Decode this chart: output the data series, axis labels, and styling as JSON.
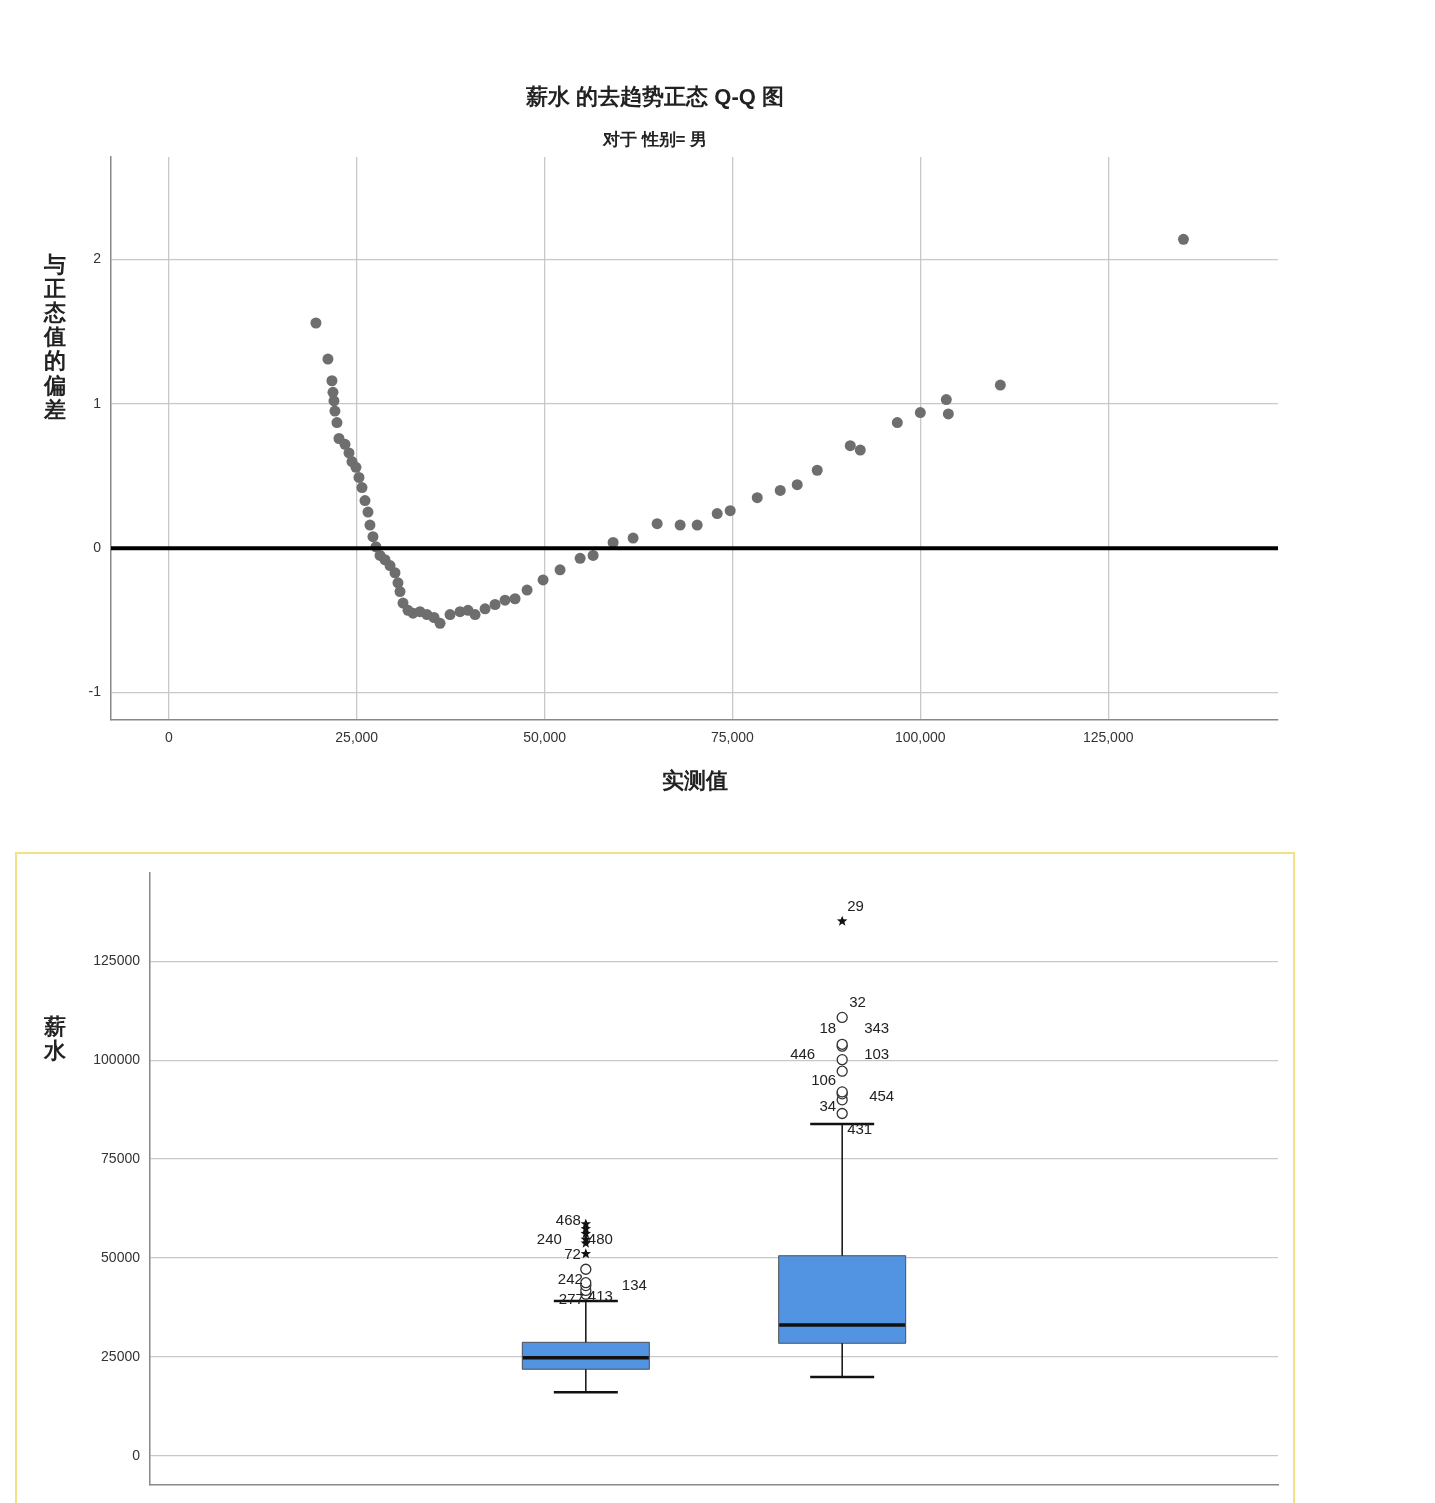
{
  "chart_data": [
    {
      "type": "scatter",
      "title": "薪水 的去趋势正态 Q-Q 图",
      "subtitle": "对于 性别= 男",
      "xlabel": "实测值",
      "ylabel": "与正态值的偏差",
      "color": "#6e6e6e",
      "marker": "circle",
      "grid": true,
      "x": [
        19570,
        21170,
        21700,
        21840,
        21970,
        22100,
        22370,
        22640,
        23440,
        23970,
        24370,
        24900,
        25300,
        25700,
        26100,
        26500,
        26760,
        27160,
        27560,
        28100,
        28760,
        29430,
        30090,
        30490,
        30760,
        31160,
        31820,
        32490,
        33420,
        34350,
        35290,
        36090,
        37420,
        38750,
        39810,
        40750,
        42080,
        43410,
        44740,
        46070,
        47670,
        49800,
        52060,
        54730,
        56460,
        59120,
        61780,
        64980,
        68040,
        70310,
        72970,
        74700,
        78300,
        81360,
        83620,
        86280,
        90680,
        92010,
        96940,
        100000,
        103460,
        103730,
        110650,
        135020
      ],
      "values": [
        1.56,
        1.31,
        1.16,
        1.08,
        1.02,
        0.95,
        0.87,
        0.76,
        0.72,
        0.66,
        0.6,
        0.56,
        0.49,
        0.42,
        0.33,
        0.25,
        0.16,
        0.08,
        0.01,
        -0.05,
        -0.08,
        -0.12,
        -0.17,
        -0.24,
        -0.3,
        -0.38,
        -0.43,
        -0.45,
        -0.44,
        -0.46,
        -0.48,
        -0.52,
        -0.46,
        -0.44,
        -0.43,
        -0.46,
        -0.42,
        -0.39,
        -0.36,
        -0.35,
        -0.29,
        -0.22,
        -0.15,
        -0.07,
        -0.05,
        0.04,
        0.07,
        0.17,
        0.16,
        0.16,
        0.24,
        0.26,
        0.35,
        0.4,
        0.44,
        0.54,
        0.71,
        0.68,
        0.87,
        0.94,
        1.03,
        0.93,
        1.13,
        2.14
      ],
      "xlim": [
        -7700,
        147600
      ],
      "ylim": [
        -1.19,
        2.71
      ],
      "xticks": [
        {
          "value": 0,
          "label": "0"
        },
        {
          "value": 25000,
          "label": "25,000"
        },
        {
          "value": 50000,
          "label": "50,000"
        },
        {
          "value": 75000,
          "label": "75,000"
        },
        {
          "value": 100000,
          "label": "100,000"
        },
        {
          "value": 125000,
          "label": "125,000"
        }
      ],
      "yticks": [
        -1,
        0,
        1,
        2
      ],
      "ref_lines": [
        {
          "axis": "y",
          "value": 0,
          "color": "#000000"
        }
      ]
    },
    {
      "type": "box",
      "ylabel": "薪水",
      "categories": [
        null,
        null
      ],
      "color": "#5294e2",
      "grid": "y",
      "tick_labels": "y",
      "boxes": [
        {
          "low": 16040,
          "q1": 21880,
          "median": 24790,
          "q3": 28680,
          "high": 39130,
          "outliers": [
            40840,
            41800,
            43030,
            43750,
            47150,
            51050,
            53720,
            54690,
            56150,
            57370,
            58580
          ]
        },
        {
          "low": 19930,
          "q1": 28440,
          "median": 33060,
          "q3": 50560,
          "high": 83860,
          "outliers": [
            86530,
            90000,
            91500,
            92000,
            97230,
            100150,
            103550,
            104040,
            110840,
            135150
          ]
        }
      ],
      "ylim": [
        -7300,
        147500
      ],
      "yticks": [
        0,
        25000,
        50000,
        75000,
        100000,
        125000
      ],
      "annotations": [
        "468",
        "480",
        "240",
        "413",
        "72",
        "134",
        "242",
        "29",
        "277",
        "32",
        "18",
        "343",
        "446",
        "103",
        "106",
        "454",
        "34",
        "431"
      ]
    }
  ]
}
